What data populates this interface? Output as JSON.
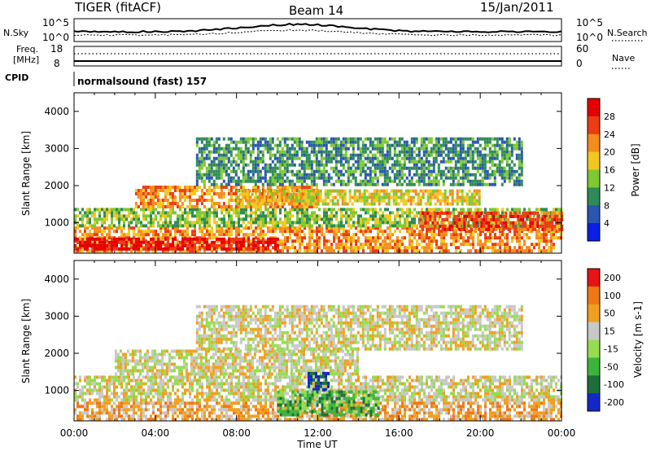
{
  "header": {
    "radar": "TIGER (fitACF)",
    "beam": "Beam 14",
    "date": "15/Jan/2011"
  },
  "panels": {
    "nsky_label": "N.Sky",
    "nsky_ticks": [
      "10^5",
      "10^0"
    ],
    "nsearch_label": "N.Search",
    "nsearch_ticks": [
      "10^5",
      "10^0"
    ],
    "freq_label_1": "Freq.",
    "freq_label_2": "[MHz]",
    "freq_ticks": [
      "18",
      "8"
    ],
    "nave_label": "Nave",
    "nave_ticks": [
      "60",
      "0"
    ],
    "cpid_label": "CPID",
    "cpid_text": "normalsound (fast) 157"
  },
  "chart_data": [
    {
      "type": "heatmap",
      "name_shown": "Power",
      "xlabel": "Time UT",
      "ylabel": "Slant Range [km]",
      "x_ticks": [
        "00:00",
        "04:00",
        "08:00",
        "12:00",
        "16:00",
        "20:00",
        "00:00"
      ],
      "x_range_hours": [
        0,
        24
      ],
      "y_ticks": [
        1000,
        2000,
        3000,
        4000
      ],
      "y_range_km": [
        180,
        4500
      ],
      "colorbar": {
        "label": "Power [dB]",
        "ticks": [
          "4",
          "8",
          "12",
          "16",
          "20",
          "24",
          "28"
        ],
        "colors": [
          "#0a1ee6",
          "#2a55b0",
          "#2e8b57",
          "#7fc832",
          "#f0c81e",
          "#f58c1e",
          "#eb3c14",
          "#e60000"
        ]
      },
      "bands": [
        {
          "t": [
            0,
            24
          ],
          "r": [
            200,
            900
          ],
          "level": 5
        },
        {
          "t": [
            0,
            10
          ],
          "r": [
            250,
            600
          ],
          "level": 7
        },
        {
          "t": [
            0,
            24
          ],
          "r": [
            900,
            1400
          ],
          "level": 3
        },
        {
          "t": [
            3,
            12
          ],
          "r": [
            1400,
            2000
          ],
          "level": 5
        },
        {
          "t": [
            8,
            20
          ],
          "r": [
            1500,
            1900
          ],
          "level": 4
        },
        {
          "t": [
            6,
            22
          ],
          "r": [
            2000,
            3300
          ],
          "level": 2
        },
        {
          "t": [
            17,
            24
          ],
          "r": [
            800,
            1300
          ],
          "level": 6
        }
      ]
    },
    {
      "type": "heatmap",
      "name_shown": "Velocity",
      "xlabel": "Time UT",
      "ylabel": "Slant Range [km]",
      "x_ticks": [
        "00:00",
        "04:00",
        "08:00",
        "12:00",
        "16:00",
        "20:00",
        "00:00"
      ],
      "x_range_hours": [
        0,
        24
      ],
      "y_ticks": [
        1000,
        2000,
        3000,
        4000
      ],
      "y_range_km": [
        180,
        4500
      ],
      "colorbar": {
        "label": "Velocity [m s-1]",
        "ticks": [
          "200",
          "100",
          "50",
          "15",
          "-15",
          "-50",
          "-100",
          "-200"
        ],
        "colors": [
          "#1428c8",
          "#1e6e3c",
          "#3cb43c",
          "#96dc50",
          "#c8c8c8",
          "#f0a01e",
          "#f07814",
          "#e61414"
        ]
      },
      "bands": [
        {
          "t": [
            0,
            24
          ],
          "r": [
            200,
            700
          ],
          "level": 5
        },
        {
          "t": [
            0,
            24
          ],
          "r": [
            700,
            1400
          ],
          "level": 4
        },
        {
          "t": [
            2,
            14
          ],
          "r": [
            1400,
            2100
          ],
          "level": 4
        },
        {
          "t": [
            6,
            22
          ],
          "r": [
            2100,
            3300
          ],
          "level": 4
        },
        {
          "t": [
            11.5,
            12.5
          ],
          "r": [
            1000,
            1500
          ],
          "level": 0
        },
        {
          "t": [
            10,
            15
          ],
          "r": [
            300,
            1000
          ],
          "level": 2
        }
      ]
    }
  ]
}
